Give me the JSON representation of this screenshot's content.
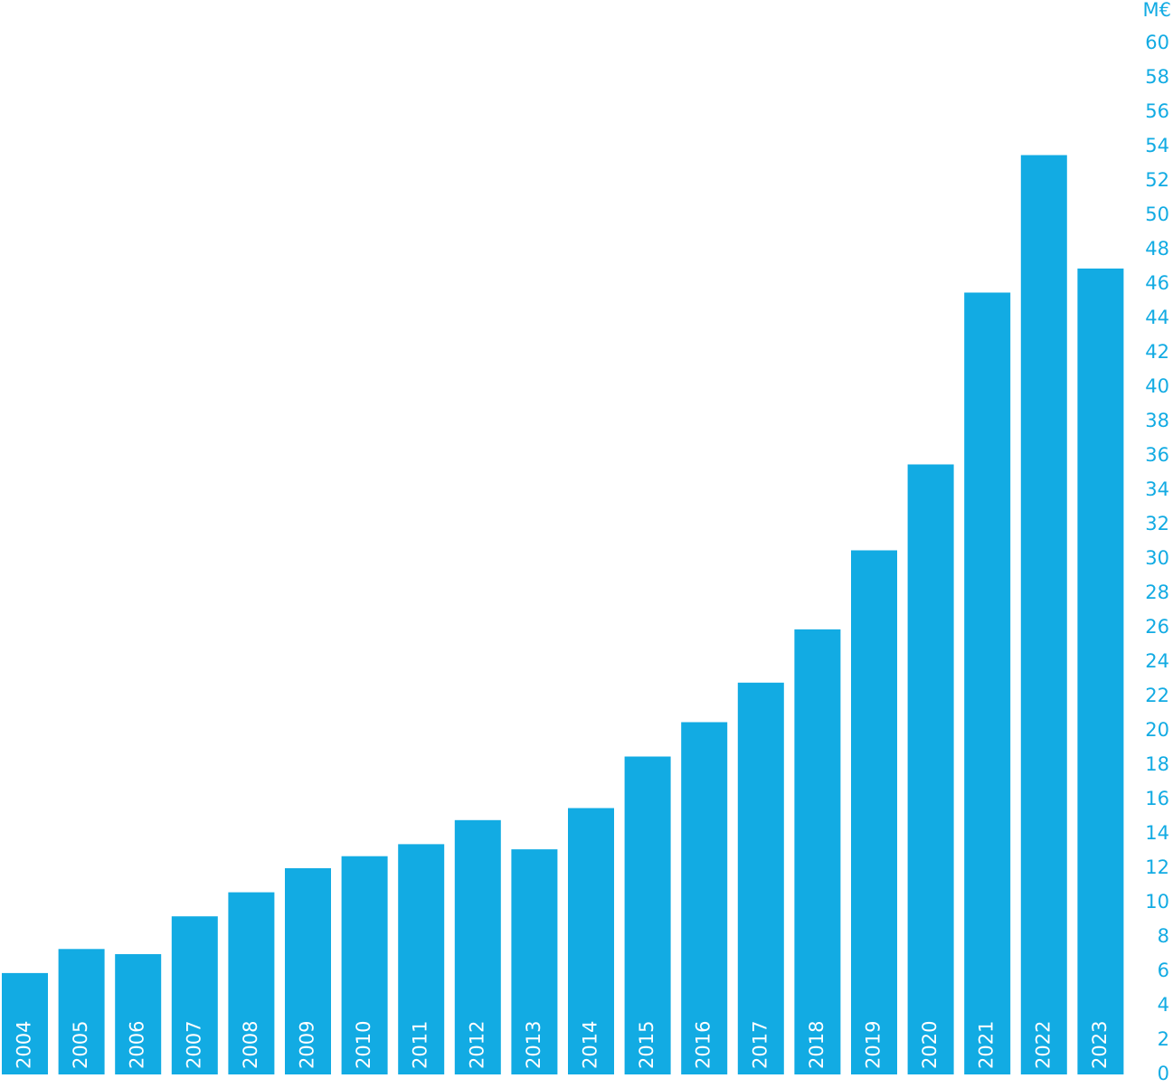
{
  "chart_data": {
    "type": "bar",
    "y_label": "M€",
    "categories": [
      "2004",
      "2005",
      "2006",
      "2007",
      "2008",
      "2009",
      "2010",
      "2011",
      "2012",
      "2013",
      "2014",
      "2015",
      "2016",
      "2017",
      "2018",
      "2019",
      "2020",
      "2021",
      "2022",
      "2023"
    ],
    "values": [
      5.9,
      7.3,
      7.0,
      9.2,
      10.6,
      12.0,
      12.7,
      13.4,
      14.8,
      13.1,
      15.5,
      18.5,
      20.5,
      22.8,
      25.9,
      30.5,
      35.5,
      45.5,
      53.5,
      46.9
    ],
    "color": "#12abe3",
    "ylim": [
      0,
      60
    ],
    "yticks": [
      0,
      2,
      4,
      6,
      8,
      10,
      12,
      14,
      16,
      18,
      20,
      22,
      24,
      26,
      28,
      30,
      32,
      34,
      36,
      38,
      40,
      42,
      44,
      46,
      48,
      50,
      52,
      54,
      56,
      58,
      60
    ],
    "grid": false
  }
}
